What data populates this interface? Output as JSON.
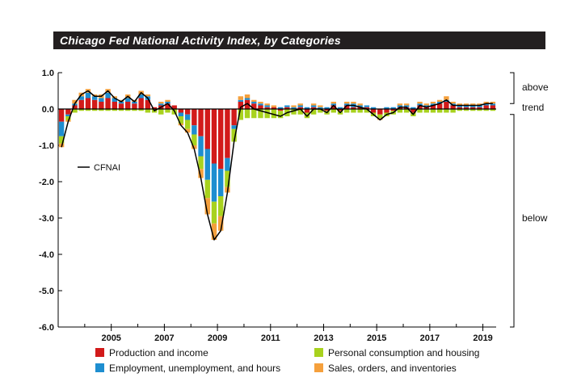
{
  "chart_data": {
    "type": "bar",
    "stacked": true,
    "title": "Chicago Fed National Activity Index, by Categories",
    "xlabel": "",
    "ylabel": "",
    "ylim": [
      -6.0,
      1.0
    ],
    "yticks": [
      1.0,
      0.0,
      -1.0,
      -2.0,
      -3.0,
      -4.0,
      -5.0,
      -6.0
    ],
    "ytick_labels": [
      "1.0",
      "0.0",
      "-1.0",
      "-2.0",
      "-3.0",
      "-4.0",
      "-5.0",
      "-6.0"
    ],
    "xlim": [
      2003.0,
      2019.5
    ],
    "xticks": [
      2005,
      2007,
      2009,
      2011,
      2013,
      2015,
      2017,
      2019
    ],
    "xtick_labels": [
      "2005",
      "2007",
      "2009",
      "2011",
      "2013",
      "2015",
      "2017",
      "2019"
    ],
    "x_start": 2003.0,
    "x_step": 0.25,
    "colors": {
      "production": "#d21a1a",
      "employment": "#1e8ed0",
      "consumption": "#a8d21e",
      "sales": "#f5a03c",
      "line": "#000000"
    },
    "series": [
      {
        "name": "Production and income",
        "key": "production",
        "values": [
          -0.35,
          -0.15,
          0.1,
          0.25,
          0.3,
          0.25,
          0.2,
          0.3,
          0.2,
          0.15,
          0.2,
          0.15,
          0.3,
          0.25,
          0.05,
          0.1,
          0.15,
          0.1,
          -0.1,
          -0.15,
          -0.45,
          -0.75,
          -1.1,
          -1.5,
          -1.65,
          -1.35,
          -0.45,
          0.2,
          0.25,
          0.15,
          0.1,
          0.05,
          0.05,
          -0.05,
          0.05,
          0.0,
          0.05,
          -0.1,
          0.05,
          0.0,
          -0.05,
          0.1,
          -0.05,
          0.1,
          0.05,
          0.05,
          0.05,
          -0.1,
          -0.15,
          -0.1,
          -0.05,
          0.05,
          0.05,
          -0.1,
          0.1,
          0.05,
          0.1,
          0.15,
          0.2,
          0.1,
          0.05,
          0.05,
          0.05,
          0.05,
          0.1,
          0.1
        ]
      },
      {
        "name": "Employment, unemployment, and hours",
        "key": "employment",
        "values": [
          -0.4,
          -0.05,
          0.05,
          0.1,
          0.15,
          0.1,
          0.1,
          0.15,
          0.1,
          0.05,
          0.1,
          0.05,
          0.1,
          0.1,
          0.0,
          0.05,
          0.05,
          0.0,
          -0.1,
          -0.15,
          -0.25,
          -0.55,
          -0.85,
          -1.05,
          -0.75,
          -0.35,
          -0.1,
          0.05,
          0.05,
          0.05,
          0.05,
          0.05,
          0.0,
          0.05,
          0.05,
          0.05,
          0.05,
          0.05,
          0.05,
          0.05,
          0.05,
          0.05,
          0.05,
          0.05,
          0.1,
          0.05,
          0.05,
          0.05,
          0.0,
          0.05,
          0.05,
          0.05,
          0.05,
          0.05,
          0.05,
          0.05,
          0.05,
          0.05,
          0.05,
          0.05,
          0.05,
          0.05,
          0.05,
          0.05,
          0.05,
          0.05
        ]
      },
      {
        "name": "Personal consumption and housing",
        "key": "consumption",
        "values": [
          -0.2,
          -0.1,
          -0.1,
          -0.05,
          -0.05,
          -0.05,
          -0.05,
          -0.05,
          -0.05,
          -0.05,
          -0.05,
          -0.05,
          -0.05,
          -0.1,
          -0.1,
          -0.15,
          -0.1,
          -0.15,
          -0.2,
          -0.25,
          -0.3,
          -0.35,
          -0.5,
          -0.6,
          -0.55,
          -0.45,
          -0.35,
          -0.3,
          -0.25,
          -0.25,
          -0.25,
          -0.25,
          -0.25,
          -0.2,
          -0.2,
          -0.15,
          -0.15,
          -0.15,
          -0.15,
          -0.1,
          -0.1,
          -0.1,
          -0.1,
          -0.1,
          -0.1,
          -0.1,
          -0.1,
          -0.1,
          -0.1,
          -0.1,
          -0.1,
          -0.1,
          -0.1,
          -0.1,
          -0.1,
          -0.1,
          -0.1,
          -0.1,
          -0.1,
          -0.1,
          -0.05,
          -0.05,
          -0.05,
          -0.05,
          -0.05,
          -0.05
        ]
      },
      {
        "name": "Sales, orders, and inventories",
        "key": "sales",
        "values": [
          -0.1,
          -0.05,
          0.1,
          0.1,
          0.1,
          0.05,
          0.1,
          0.1,
          0.05,
          0.05,
          0.1,
          0.05,
          0.1,
          0.05,
          0.0,
          0.05,
          0.05,
          0.0,
          -0.05,
          -0.1,
          -0.1,
          -0.25,
          -0.45,
          -0.45,
          -0.4,
          -0.15,
          0.0,
          0.1,
          0.1,
          0.05,
          0.05,
          0.05,
          0.05,
          0.0,
          0.0,
          0.05,
          0.05,
          0.0,
          0.05,
          0.05,
          0.0,
          0.05,
          0.0,
          0.05,
          0.05,
          0.05,
          0.0,
          0.0,
          -0.05,
          0.0,
          0.0,
          0.05,
          0.05,
          0.0,
          0.05,
          0.05,
          0.05,
          0.05,
          0.1,
          0.05,
          0.05,
          0.05,
          0.05,
          0.05,
          0.05,
          0.05
        ]
      },
      {
        "name": "CFNAI",
        "key": "cfnai",
        "type": "line",
        "values": [
          -1.05,
          -0.35,
          0.15,
          0.4,
          0.5,
          0.35,
          0.35,
          0.5,
          0.3,
          0.2,
          0.35,
          0.2,
          0.45,
          0.3,
          -0.05,
          0.05,
          0.15,
          -0.05,
          -0.45,
          -0.65,
          -1.1,
          -1.9,
          -2.9,
          -3.6,
          -3.35,
          -2.3,
          -0.9,
          0.05,
          0.15,
          0.0,
          -0.05,
          -0.1,
          -0.15,
          -0.2,
          -0.1,
          -0.05,
          0.0,
          -0.2,
          0.0,
          0.0,
          -0.1,
          0.1,
          -0.1,
          0.1,
          0.1,
          0.05,
          0.0,
          -0.15,
          -0.3,
          -0.15,
          -0.1,
          0.05,
          0.05,
          -0.15,
          0.1,
          0.05,
          0.1,
          0.15,
          0.25,
          0.1,
          0.1,
          0.1,
          0.1,
          0.1,
          0.15,
          0.15
        ]
      }
    ],
    "legend_line_label": "CFNAI",
    "legend": [
      {
        "label": "Production and income",
        "key": "production"
      },
      {
        "label": "Personal consumption and housing",
        "key": "consumption"
      },
      {
        "label": "Employment, unemployment, and hours",
        "key": "employment"
      },
      {
        "label": "Sales, orders, and inventories",
        "key": "sales"
      }
    ],
    "right_annotations": {
      "above": "above",
      "trend": "trend",
      "below": "below"
    }
  }
}
